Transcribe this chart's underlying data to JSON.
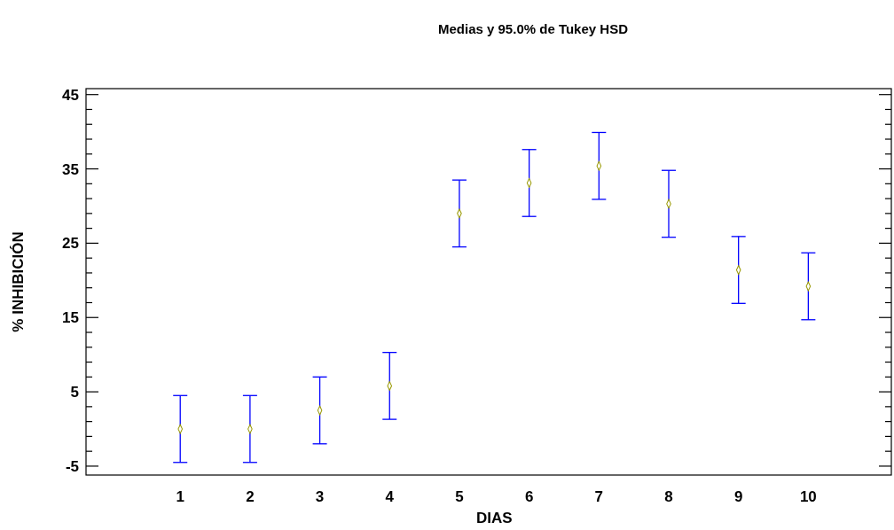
{
  "chart_data": {
    "type": "scatter",
    "title": "Medias y 95.0% de Tukey HSD",
    "xlabel": "DIAS",
    "ylabel": "% INHIBICIÓN",
    "categories": [
      "1",
      "2",
      "3",
      "4",
      "5",
      "6",
      "7",
      "8",
      "9",
      "10"
    ],
    "series": [
      {
        "color": "#999900",
        "values": [
          0,
          0,
          2.5,
          5.8,
          29.0,
          33.1,
          35.4,
          30.3,
          21.4,
          19.2
        ],
        "errors": [
          4.5,
          4.5,
          4.5,
          4.5,
          4.5,
          4.5,
          4.5,
          4.5,
          4.5,
          4.5
        ]
      }
    ],
    "ylim": [
      -6.2,
      45.8
    ],
    "yticks": [
      -5,
      {
        "value": -3,
        "label": null
      },
      {
        "value": -1,
        "label": null
      },
      {
        "value": 1,
        "label": null
      },
      {
        "value": 3,
        "label": null
      },
      5,
      {
        "value": 7,
        "label": null
      },
      {
        "value": 9,
        "label": null
      },
      {
        "value": 11,
        "label": null
      },
      {
        "value": 13,
        "label": null
      },
      15,
      {
        "value": 17,
        "label": null
      },
      {
        "value": 19,
        "label": null
      },
      {
        "value": 21,
        "label": null
      },
      {
        "value": 23,
        "label": null
      },
      25,
      {
        "value": 27,
        "label": null
      },
      {
        "value": 29,
        "label": null
      },
      {
        "value": 31,
        "label": null
      },
      {
        "value": 33,
        "label": null
      },
      35,
      {
        "value": 37,
        "label": null
      },
      {
        "value": 39,
        "label": null
      },
      {
        "value": 41,
        "label": null
      },
      {
        "value": 43,
        "label": null
      },
      45
    ],
    "marker": "diamond",
    "grid": false
  }
}
